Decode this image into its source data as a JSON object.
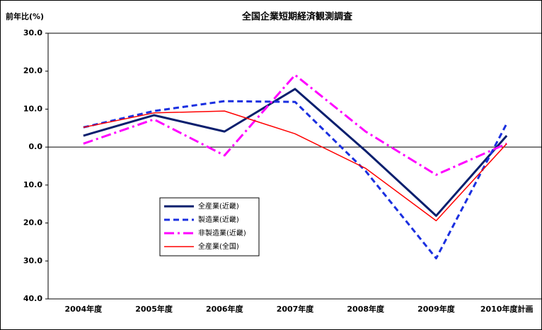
{
  "chart_data": {
    "type": "line",
    "title": "全国企業短期経済観測調査",
    "ylabel": "前年比(%)",
    "categories": [
      "2004年度",
      "2005年度",
      "2006年度",
      "2007年度",
      "2008年度",
      "2009年度",
      "2010年度計画"
    ],
    "series": [
      {
        "name": "全産業(近畿)",
        "color": "#0a1f6e",
        "style": "solid-thick",
        "values": [
          3.0,
          8.4,
          4.1,
          15.3,
          -1.0,
          -18.1,
          3.0
        ]
      },
      {
        "name": "製造業(近畿)",
        "color": "#1a2fe0",
        "style": "dashed",
        "values": [
          5.2,
          9.5,
          12.1,
          11.9,
          -6.3,
          -29.3,
          6.2
        ]
      },
      {
        "name": "非製造業(近畿)",
        "color": "#ff00ff",
        "style": "dashdot",
        "values": [
          0.9,
          7.3,
          -2.2,
          19.0,
          4.1,
          -7.3,
          0.9
        ]
      },
      {
        "name": "全産業(全国)",
        "color": "#ff0000",
        "style": "solid-thin",
        "values": [
          5.2,
          9.0,
          9.5,
          3.5,
          -5.6,
          -19.4,
          0.9
        ]
      }
    ],
    "ylim": [
      -40,
      30
    ],
    "yticks": [
      {
        "value": -40,
        "label": "40.0"
      },
      {
        "value": -30,
        "label": "30.0"
      },
      {
        "value": -20,
        "label": "20.0"
      },
      {
        "value": -10,
        "label": "10.0"
      },
      {
        "value": 0,
        "label": "0.0"
      },
      {
        "value": 10,
        "label": "10.0"
      },
      {
        "value": 20,
        "label": "20.0"
      },
      {
        "value": 30,
        "label": "30.0"
      }
    ],
    "legend": "center-left"
  }
}
